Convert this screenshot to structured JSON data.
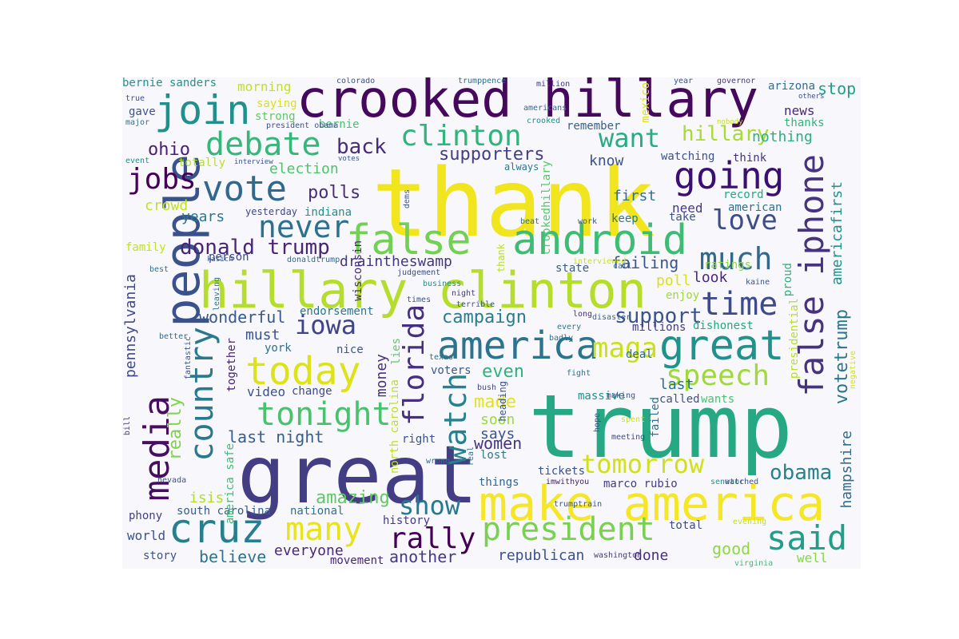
{
  "words": [
    {
      "text": "thank",
      "color": "#f1e51d"
    },
    {
      "text": "trump",
      "color": "#25a883"
    },
    {
      "text": "great",
      "color": "#433d84"
    },
    {
      "text": "crooked hillary",
      "color": "#46085c"
    },
    {
      "text": "hillary clinton",
      "color": "#b5dd2b"
    },
    {
      "text": "make america",
      "color": "#f5e627"
    },
    {
      "text": "android",
      "color": "#3ebc74"
    },
    {
      "text": "false",
      "color": "#74d055"
    },
    {
      "text": "people",
      "color": "#3a528b"
    },
    {
      "text": "america",
      "color": "#2c738e"
    },
    {
      "text": "great",
      "color": "#20928c"
    },
    {
      "text": "today",
      "color": "#dde318"
    },
    {
      "text": "going",
      "color": "#3b0f70"
    },
    {
      "text": "join",
      "color": "#21908d"
    },
    {
      "text": "vote",
      "color": "#31688e"
    },
    {
      "text": "cruz",
      "color": "#277f8e"
    },
    {
      "text": "president",
      "color": "#7ad151"
    },
    {
      "text": "many",
      "color": "#e7e419"
    },
    {
      "text": "said",
      "color": "#1f9e89"
    },
    {
      "text": "rally",
      "color": "#440154"
    },
    {
      "text": "country",
      "color": "#2a788e"
    },
    {
      "text": "media",
      "color": "#470d60"
    },
    {
      "text": "false iphone",
      "color": "#46327e"
    },
    {
      "text": "debate",
      "color": "#35b779"
    },
    {
      "text": "clinton",
      "color": "#2fb47c"
    },
    {
      "text": "never",
      "color": "#2d718e"
    },
    {
      "text": "watch",
      "color": "#26818e"
    },
    {
      "text": "florida",
      "color": "#462f7e"
    },
    {
      "text": "tonight",
      "color": "#4ac16d"
    },
    {
      "text": "speech",
      "color": "#9fda3a"
    },
    {
      "text": "time",
      "color": "#3e4a89"
    },
    {
      "text": "much",
      "color": "#31688e"
    },
    {
      "text": "iowa",
      "color": "#404387"
    },
    {
      "text": "want",
      "color": "#27ad81"
    },
    {
      "text": "tomorrow",
      "color": "#d0e11c"
    },
    {
      "text": "maga",
      "color": "#c8e020"
    },
    {
      "text": "show",
      "color": "#29798e"
    },
    {
      "text": "love",
      "color": "#3e4c8a"
    },
    {
      "text": "jobs",
      "color": "#440256"
    },
    {
      "text": "obama",
      "color": "#26828e"
    },
    {
      "text": "back",
      "color": "#472c7a"
    },
    {
      "text": "donald trump",
      "color": "#482576"
    },
    {
      "text": "supporters",
      "color": "#433e85"
    },
    {
      "text": "campaign",
      "color": "#287d8e"
    },
    {
      "text": "support",
      "color": "#3b528b"
    },
    {
      "text": "amazing",
      "color": "#5ec962"
    },
    {
      "text": "hillary",
      "color": "#a8db34"
    },
    {
      "text": "americafirst",
      "color": "#21918c"
    },
    {
      "text": "votetrump",
      "color": "#2a768e"
    },
    {
      "text": "hampshire",
      "color": "#2e6e8e"
    },
    {
      "text": "pennsylvania",
      "color": "#3f4889"
    },
    {
      "text": "really",
      "color": "#7fd34e"
    },
    {
      "text": "polls",
      "color": "#472d7b"
    },
    {
      "text": "ohio",
      "color": "#482173"
    },
    {
      "text": "women",
      "color": "#463480"
    },
    {
      "text": "made",
      "color": "#e2e418"
    },
    {
      "text": "even",
      "color": "#2db27d"
    },
    {
      "text": "good",
      "color": "#90d743"
    },
    {
      "text": "believe",
      "color": "#2c738e"
    },
    {
      "text": "everyone",
      "color": "#482878"
    },
    {
      "text": "another",
      "color": "#443a83"
    },
    {
      "text": "wonderful",
      "color": "#38598c"
    },
    {
      "text": "last night",
      "color": "#355e8d"
    },
    {
      "text": "election",
      "color": "#4ec36b"
    },
    {
      "text": "failing",
      "color": "#39568c"
    },
    {
      "text": "republican",
      "color": "#3b528b"
    },
    {
      "text": "drainthesw amp",
      "color": "#453781"
    },
    {
      "text": "stop",
      "color": "#1fa187"
    },
    {
      "text": "years",
      "color": "#2a788e"
    },
    {
      "text": "crowd",
      "color": "#c5e021"
    },
    {
      "text": "nothing",
      "color": "#2ab07f"
    },
    {
      "text": "first",
      "color": "#2d708e"
    },
    {
      "text": "know",
      "color": "#3b528b"
    },
    {
      "text": "must",
      "color": "#3b528b"
    },
    {
      "text": "morning",
      "color": "#c2df23"
    },
    {
      "text": "bernie sanders",
      "color": "#21918c"
    },
    {
      "text": "isis",
      "color": "#b2dd2d"
    },
    {
      "text": "done",
      "color": "#472f7d"
    },
    {
      "text": "poll",
      "color": "#d8e219"
    },
    {
      "text": "look",
      "color": "#482979"
    },
    {
      "text": "last",
      "color": "#2e6f8e"
    },
    {
      "text": "money",
      "color": "#46307e"
    },
    {
      "text": "video",
      "color": "#3b528b"
    },
    {
      "text": "well",
      "color": "#86d549"
    },
    {
      "text": "soon",
      "color": "#9bd93c"
    },
    {
      "text": "says",
      "color": "#3a548c"
    },
    {
      "text": "lies",
      "color": "#5ec962"
    },
    {
      "text": "national",
      "color": "#2c728e"
    },
    {
      "text": "need",
      "color": "#443983"
    },
    {
      "text": "state",
      "color": "#365c8d"
    },
    {
      "text": "keep",
      "color": "#2a788e"
    },
    {
      "text": "voters",
      "color": "#38588c"
    },
    {
      "text": "news",
      "color": "#482878"
    },
    {
      "text": "total",
      "color": "#3e4a89"
    },
    {
      "text": "phony",
      "color": "#433e85"
    },
    {
      "text": "world",
      "color": "#3a548c"
    },
    {
      "text": "story",
      "color": "#3b528b"
    },
    {
      "text": "history",
      "color": "#443983"
    },
    {
      "text": "movement",
      "color": "#482677"
    },
    {
      "text": "saying",
      "color": "#d8e219"
    },
    {
      "text": "strong",
      "color": "#5ec962"
    },
    {
      "text": "gave",
      "color": "#3a548c"
    },
    {
      "text": "bernie",
      "color": "#46c06f"
    },
    {
      "text": "totally",
      "color": "#b5de2b"
    },
    {
      "text": "thanks",
      "color": "#2fb47c"
    },
    {
      "text": "remember",
      "color": "#355f8d"
    },
    {
      "text": "watching",
      "color": "#3b528b"
    },
    {
      "text": "think",
      "color": "#46337f"
    },
    {
      "text": "yesterday",
      "color": "#404688"
    },
    {
      "text": "indiana",
      "color": "#21908d"
    },
    {
      "text": "record",
      "color": "#22a785"
    },
    {
      "text": "american",
      "color": "#2c728e"
    },
    {
      "text": "take",
      "color": "#3b528b"
    },
    {
      "text": "ratings",
      "color": "#8bd646"
    },
    {
      "text": "enjoy",
      "color": "#9dd93b"
    },
    {
      "text": "dishonest",
      "color": "#22a884"
    },
    {
      "text": "millions",
      "color": "#443a83"
    },
    {
      "text": "deal",
      "color": "#2e6d8e"
    },
    {
      "text": "called",
      "color": "#3b528b"
    },
    {
      "text": "wants",
      "color": "#4ac16d"
    },
    {
      "text": "massive",
      "color": "#21918c"
    },
    {
      "text": "failed",
      "color": "#2c718e"
    },
    {
      "text": "lost",
      "color": "#2a778e"
    },
    {
      "text": "tickets",
      "color": "#3b528b"
    },
    {
      "text": "things",
      "color": "#31688e"
    },
    {
      "text": "marco rubio",
      "color": "#433d84"
    },
    {
      "text": "south carolina",
      "color": "#355e8d"
    },
    {
      "text": "north carolina",
      "color": "#bddf26"
    },
    {
      "text": "right",
      "color": "#3b528b"
    },
    {
      "text": "nice",
      "color": "#39568c"
    },
    {
      "text": "york",
      "color": "#2e6f8e"
    },
    {
      "text": "change",
      "color": "#3e4a89"
    },
    {
      "text": "together",
      "color": "#482374"
    },
    {
      "text": "endorsement",
      "color": "#2a788e"
    },
    {
      "text": "wisconsin",
      "color": "#472e7c"
    },
    {
      "text": "proud",
      "color": "#2db27d"
    },
    {
      "text": "arizona",
      "color": "#2e6e8e"
    },
    {
      "text": "mexico",
      "color": "#dfe318"
    },
    {
      "text": "true",
      "color": "#3b528b"
    },
    {
      "text": "major",
      "color": "#2d708e"
    },
    {
      "text": "event",
      "color": "#21908d"
    },
    {
      "text": "family",
      "color": "#c5e021"
    },
    {
      "text": "person",
      "color": "#3e4989"
    },
    {
      "text": "best",
      "color": "#2c728e"
    },
    {
      "text": "bill",
      "color": "#433e85"
    },
    {
      "text": "america safe",
      "color": "#3ebc74"
    },
    {
      "text": "better",
      "color": "#31688e"
    },
    {
      "text": "fantastic",
      "color": "#3b528b"
    },
    {
      "text": "leaving",
      "color": "#2a788e"
    },
    {
      "text": "kasich",
      "color": "#38598c"
    },
    {
      "text": "donaldtrump",
      "color": "#31688e"
    },
    {
      "text": "judgement",
      "color": "#3e4a89"
    },
    {
      "text": "business",
      "color": "#21908d"
    },
    {
      "text": "night",
      "color": "#443983"
    },
    {
      "text": "terrible",
      "color": "#38598c"
    },
    {
      "text": "times",
      "color": "#3b528b"
    },
    {
      "text": "call",
      "color": "#2c728e"
    },
    {
      "text": "interviewed",
      "color": "#cae11f"
    },
    {
      "text": "long",
      "color": "#472d7b"
    },
    {
      "text": "every",
      "color": "#2a788e"
    },
    {
      "text": "disaster",
      "color": "#31688e"
    },
    {
      "text": "badly",
      "color": "#2c728e"
    },
    {
      "text": "kaine",
      "color": "#3b528b"
    },
    {
      "text": "negative",
      "color": "#d2e21b"
    },
    {
      "text": "presidential",
      "color": "#b8de29"
    },
    {
      "text": "crookedhillary",
      "color": "#56c667"
    },
    {
      "text": "imwithyou",
      "color": "#482173"
    },
    {
      "text": "trumptrain",
      "color": "#38598c"
    },
    {
      "text": "nevada",
      "color": "#3b528b"
    },
    {
      "text": "wrong",
      "color": "#2e6e8e"
    },
    {
      "text": "real",
      "color": "#2c728e"
    },
    {
      "text": "bush",
      "color": "#404688"
    },
    {
      "text": "fight",
      "color": "#2c728e"
    },
    {
      "text": "making",
      "color": "#3b528b"
    },
    {
      "text": "spent",
      "color": "#cae11f"
    },
    {
      "text": "meeting",
      "color": "#3e4a89"
    },
    {
      "text": "hope",
      "color": "#3b528b"
    },
    {
      "text": "senator",
      "color": "#21908d"
    },
    {
      "text": "watched",
      "color": "#3b528b"
    },
    {
      "text": "evening",
      "color": "#c2df23"
    },
    {
      "text": "washington",
      "color": "#443983"
    },
    {
      "text": "virginia",
      "color": "#3ebc74"
    },
    {
      "text": "texas",
      "color": "#2e6e8e"
    },
    {
      "text": "dems",
      "color": "#38598c"
    },
    {
      "text": "beat",
      "color": "#2e6e8e"
    },
    {
      "text": "work",
      "color": "#3b528b"
    },
    {
      "text": "americans",
      "color": "#31688e"
    },
    {
      "text": "crooked",
      "color": "#21908d"
    },
    {
      "text": "always",
      "color": "#2a788e"
    },
    {
      "text": "million",
      "color": "#443983"
    },
    {
      "text": "year",
      "color": "#3b528b"
    },
    {
      "text": "governor",
      "color": "#443983"
    },
    {
      "text": "nobody",
      "color": "#c5e021"
    },
    {
      "text": "others",
      "color": "#3b528b"
    },
    {
      "text": "colorado",
      "color": "#3b528b"
    },
    {
      "text": "trumppence",
      "color": "#2c728e"
    },
    {
      "text": "president obama",
      "color": "#3b528b"
    },
    {
      "text": "interview",
      "color": "#3b528b"
    },
    {
      "text": "votes",
      "color": "#3b528b"
    },
    {
      "text": "heading",
      "color": "#3b528b"
    },
    {
      "text": "thank",
      "color": "#b5de2b"
    },
    {
      "text": "iphone",
      "color": "#cae11f"
    }
  ]
}
